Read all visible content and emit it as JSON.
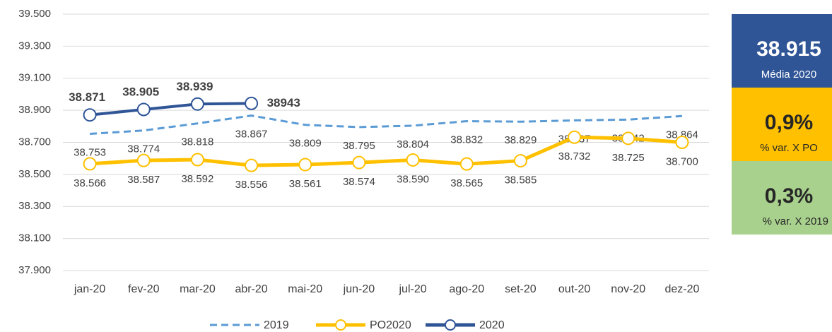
{
  "chart_data": {
    "type": "line",
    "categories": [
      "jan-20",
      "fev-20",
      "mar-20",
      "abr-20",
      "mai-20",
      "jun-20",
      "jul-20",
      "ago-20",
      "set-20",
      "out-20",
      "nov-20",
      "dez-20"
    ],
    "series": [
      {
        "name": "2019",
        "color": "#5b9bd5",
        "style": "dashed",
        "values": [
          38753,
          38774,
          38818,
          38867,
          38809,
          38795,
          38804,
          38832,
          38829,
          38837,
          38842,
          38864
        ],
        "value_labels": [
          "38.753",
          "38.774",
          "38.818",
          "38.867",
          "38.809",
          "38.795",
          "38.804",
          "38.832",
          "38.829",
          "38.837",
          "38.842",
          "38.864"
        ]
      },
      {
        "name": "PO2020",
        "color": "#ffc000",
        "style": "marker",
        "values": [
          38566,
          38587,
          38592,
          38556,
          38561,
          38574,
          38590,
          38565,
          38585,
          38732,
          38725,
          38700
        ],
        "value_labels": [
          "38.566",
          "38.587",
          "38.592",
          "38.556",
          "38.561",
          "38.574",
          "38.590",
          "38.565",
          "38.585",
          "38.732",
          "38.725",
          "38.700"
        ]
      },
      {
        "name": "2020",
        "color": "#2f5597",
        "style": "marker",
        "values": [
          38871,
          38905,
          38939,
          38943,
          null,
          null,
          null,
          null,
          null,
          null,
          null,
          null
        ],
        "value_labels": [
          "38.871",
          "38.905",
          "38.939",
          "38943",
          null,
          null,
          null,
          null,
          null,
          null,
          null,
          null
        ]
      }
    ],
    "ylim": [
      37900,
      39500
    ],
    "yticks": [
      {
        "value": 37900,
        "label": "37.900"
      },
      {
        "value": 38100,
        "label": "38.100"
      },
      {
        "value": 38300,
        "label": "38.300"
      },
      {
        "value": 38500,
        "label": "38.500"
      },
      {
        "value": 38700,
        "label": "38.700"
      },
      {
        "value": 38900,
        "label": "38.900"
      },
      {
        "value": 39100,
        "label": "39.100"
      },
      {
        "value": 39300,
        "label": "39.300"
      },
      {
        "value": 39500,
        "label": "39.500"
      }
    ],
    "grid": true,
    "legend": "bottom"
  },
  "kpis": [
    {
      "value": "38.915",
      "label": "Média 2020",
      "color": "#2f5597"
    },
    {
      "value": "0,9%",
      "label": "% var. X PO",
      "color": "#ffc000"
    },
    {
      "value": "0,3%",
      "label": "% var. X 2019",
      "color": "#a9d18e"
    }
  ]
}
